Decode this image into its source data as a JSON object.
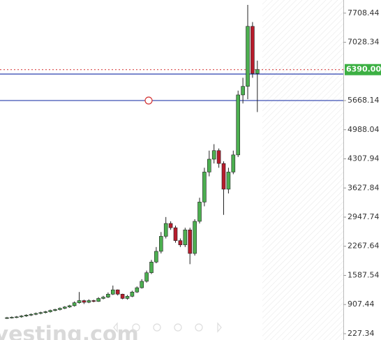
{
  "chart_data": {
    "type": "candlestick",
    "open": [
      590,
      600,
      610,
      620,
      640,
      660,
      680,
      700,
      720,
      740,
      770,
      790,
      820,
      850,
      880,
      950,
      1000,
      960,
      1000,
      980,
      1050,
      1080,
      1150,
      1250,
      1150,
      1050,
      1100,
      1200,
      1300,
      1450,
      1650,
      1900,
      2150,
      2500,
      2800,
      2700,
      2400,
      2300,
      2650,
      2100,
      2850,
      3300,
      4000,
      4300,
      4500,
      4200,
      3600,
      4000,
      4400,
      5800,
      6000,
      7400,
      6300
    ],
    "high": [
      620,
      630,
      640,
      660,
      680,
      700,
      720,
      740,
      760,
      790,
      810,
      840,
      870,
      900,
      980,
      1200,
      1020,
      1030,
      1020,
      1080,
      1110,
      1190,
      1350,
      1260,
      1160,
      1130,
      1230,
      1330,
      1500,
      1700,
      1950,
      2250,
      2600,
      2950,
      2850,
      2750,
      2450,
      2700,
      2700,
      2900,
      3400,
      4100,
      4500,
      4650,
      4550,
      4250,
      4100,
      4500,
      5900,
      6200,
      7900,
      7500,
      6600
    ],
    "low": [
      570,
      580,
      590,
      600,
      620,
      640,
      660,
      680,
      700,
      720,
      750,
      770,
      800,
      830,
      860,
      930,
      920,
      940,
      960,
      970,
      1030,
      1060,
      1130,
      1120,
      1030,
      1020,
      1080,
      1180,
      1280,
      1420,
      1620,
      1870,
      2100,
      2450,
      2650,
      2350,
      2250,
      2250,
      1850,
      2050,
      2800,
      3200,
      3900,
      4200,
      4100,
      3000,
      3500,
      3950,
      4350,
      5600,
      5700,
      6200,
      5400
    ],
    "close": [
      600,
      610,
      620,
      640,
      660,
      680,
      700,
      720,
      740,
      770,
      790,
      820,
      850,
      880,
      950,
      1000,
      960,
      1000,
      980,
      1050,
      1080,
      1150,
      1250,
      1150,
      1050,
      1100,
      1200,
      1300,
      1450,
      1650,
      1900,
      2150,
      2500,
      2800,
      2700,
      2400,
      2300,
      2650,
      2100,
      2850,
      3300,
      4000,
      4300,
      4500,
      4200,
      3600,
      4000,
      4400,
      5800,
      6000,
      7400,
      6300,
      6390
    ],
    "up_color": "#4caf50",
    "down_color": "#b71c2c",
    "ylim": [
      80,
      8015
    ],
    "yticks": [
      227.34,
      907.44,
      1587.54,
      2267.64,
      2947.74,
      3627.84,
      4307.94,
      4988.04,
      5668.14,
      7028.34,
      7708.44
    ],
    "current_price": {
      "value": 6390,
      "label": "6390.00"
    },
    "current_price_color": "#3cb043",
    "lines": [
      {
        "value": 6287,
        "color": "#3f51b5"
      },
      {
        "value": 5668.14,
        "color": "#3f51b5"
      }
    ],
    "watermark": "Investing.com"
  }
}
